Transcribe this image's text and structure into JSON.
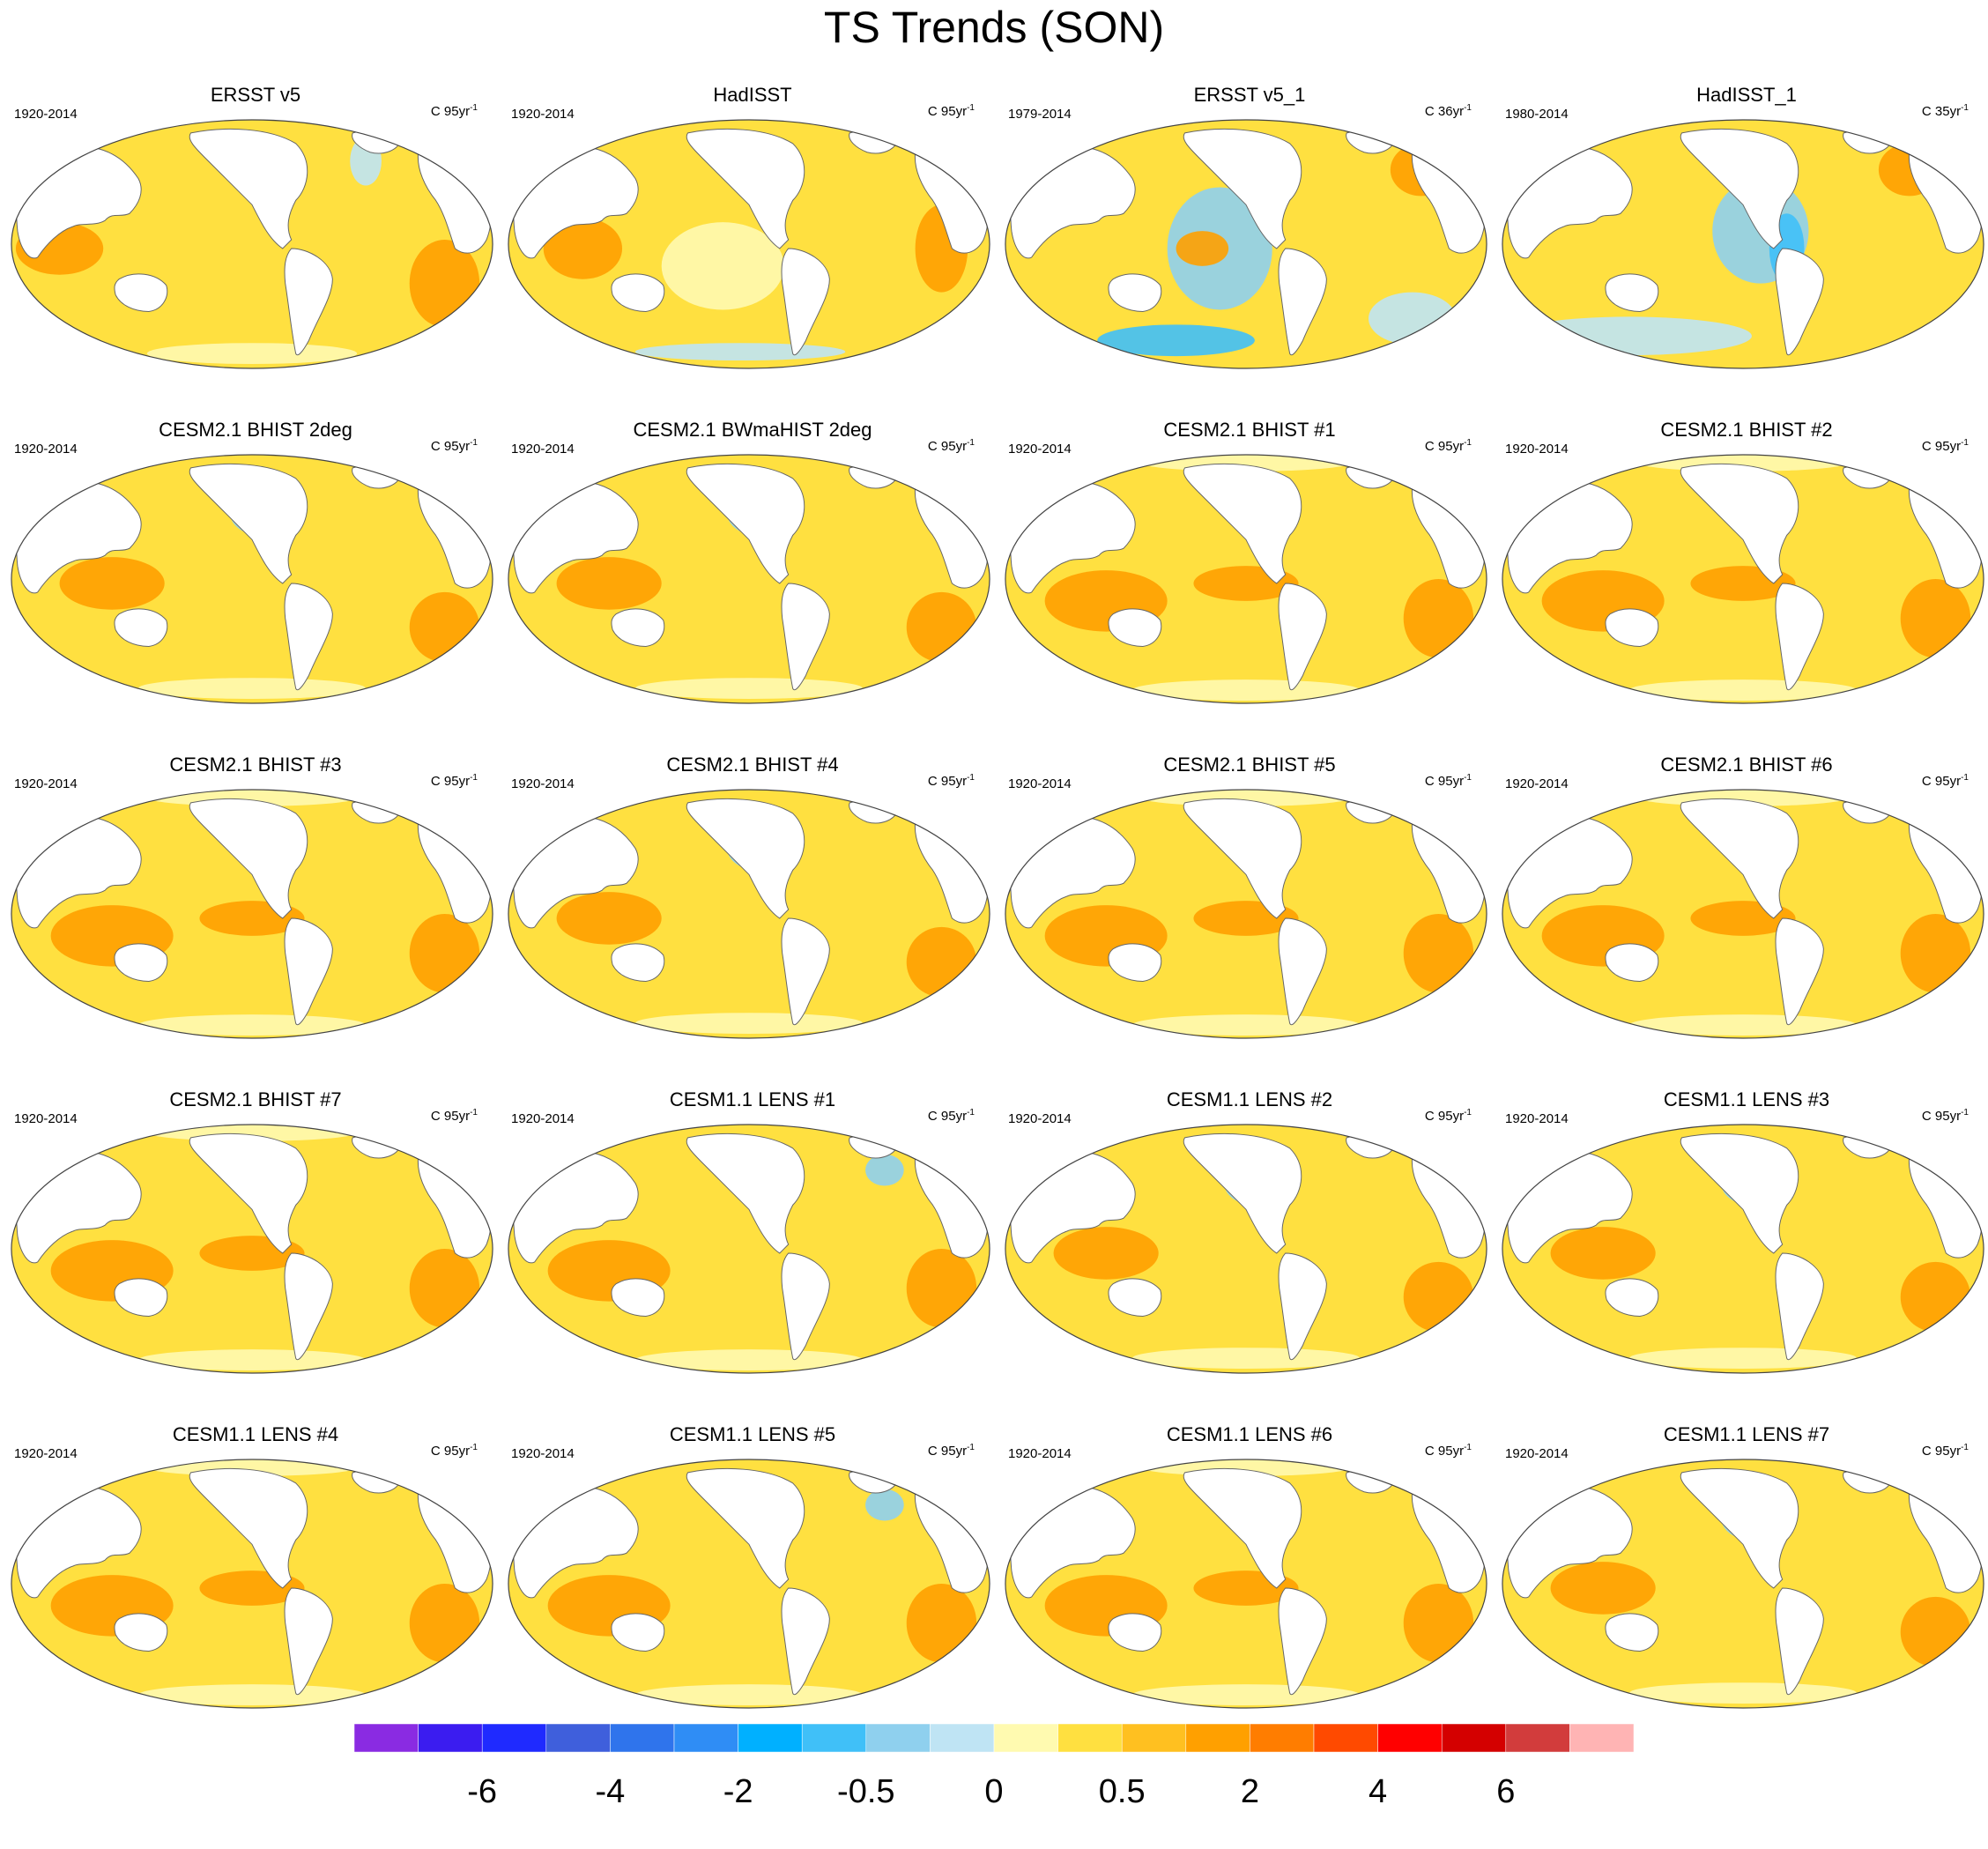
{
  "title": "TS Trends (SON)",
  "panels": [
    {
      "title": "ERSST v5",
      "period": "1920-2014",
      "units": "C 95yr",
      "sup": "-1",
      "style": "smooth"
    },
    {
      "title": "HadISST",
      "period": "1920-2014",
      "units": "C 95yr",
      "sup": "-1",
      "style": "noisy"
    },
    {
      "title": "ERSST v5_1",
      "period": "1979-2014",
      "units": "C 36yr",
      "sup": "-1",
      "style": "cool"
    },
    {
      "title": "HadISST_1",
      "period": "1980-2014",
      "units": "C 35yr",
      "sup": "-1",
      "style": "coolnoisy"
    },
    {
      "title": "CESM2.1 BHIST 2deg",
      "period": "1920-2014",
      "units": "C 95yr",
      "sup": "-1",
      "style": "npcool"
    },
    {
      "title": "CESM2.1 BWmaHIST 2deg",
      "period": "1920-2014",
      "units": "C 95yr",
      "sup": "-1",
      "style": "npcool"
    },
    {
      "title": "CESM2.1 BHIST #1",
      "period": "1920-2014",
      "units": "C 95yr",
      "sup": "-1",
      "style": "model"
    },
    {
      "title": "CESM2.1 BHIST #2",
      "period": "1920-2014",
      "units": "C 95yr",
      "sup": "-1",
      "style": "model"
    },
    {
      "title": "CESM2.1 BHIST #3",
      "period": "1920-2014",
      "units": "C 95yr",
      "sup": "-1",
      "style": "model"
    },
    {
      "title": "CESM2.1 BHIST #4",
      "period": "1920-2014",
      "units": "C 95yr",
      "sup": "-1",
      "style": "npcool"
    },
    {
      "title": "CESM2.1 BHIST #5",
      "period": "1920-2014",
      "units": "C 95yr",
      "sup": "-1",
      "style": "model"
    },
    {
      "title": "CESM2.1 BHIST #6",
      "period": "1920-2014",
      "units": "C 95yr",
      "sup": "-1",
      "style": "model"
    },
    {
      "title": "CESM2.1 BHIST #7",
      "period": "1920-2014",
      "units": "C 95yr",
      "sup": "-1",
      "style": "model"
    },
    {
      "title": "CESM1.1 LENS #1",
      "period": "1920-2014",
      "units": "C 95yr",
      "sup": "-1",
      "style": "atlcool"
    },
    {
      "title": "CESM1.1 LENS #2",
      "period": "1920-2014",
      "units": "C 95yr",
      "sup": "-1",
      "style": "npcool"
    },
    {
      "title": "CESM1.1 LENS #3",
      "period": "1920-2014",
      "units": "C 95yr",
      "sup": "-1",
      "style": "npcool"
    },
    {
      "title": "CESM1.1 LENS #4",
      "period": "1920-2014",
      "units": "C 95yr",
      "sup": "-1",
      "style": "model"
    },
    {
      "title": "CESM1.1 LENS #5",
      "period": "1920-2014",
      "units": "C 95yr",
      "sup": "-1",
      "style": "atlcool"
    },
    {
      "title": "CESM1.1 LENS #6",
      "period": "1920-2014",
      "units": "C 95yr",
      "sup": "-1",
      "style": "model"
    },
    {
      "title": "CESM1.1 LENS #7",
      "period": "1920-2014",
      "units": "C 95yr",
      "sup": "-1",
      "style": "npcool"
    }
  ],
  "colorbar": {
    "colors": [
      "#8a2be2",
      "#3b1cf0",
      "#1f2aff",
      "#3f5fdc",
      "#2f74ec",
      "#2f8df5",
      "#00b0ff",
      "#40c0f8",
      "#8fd0ee",
      "#bfe4f4",
      "#fffab0",
      "#ffe040",
      "#ffc020",
      "#ffa000",
      "#ff7d00",
      "#ff4a00",
      "#ff0000",
      "#d40000",
      "#d23c3c",
      "#ffb4b4"
    ],
    "labels": [
      "-6",
      "-4",
      "-2",
      "-0.5",
      "0",
      "0.5",
      "2",
      "4",
      "6"
    ]
  }
}
